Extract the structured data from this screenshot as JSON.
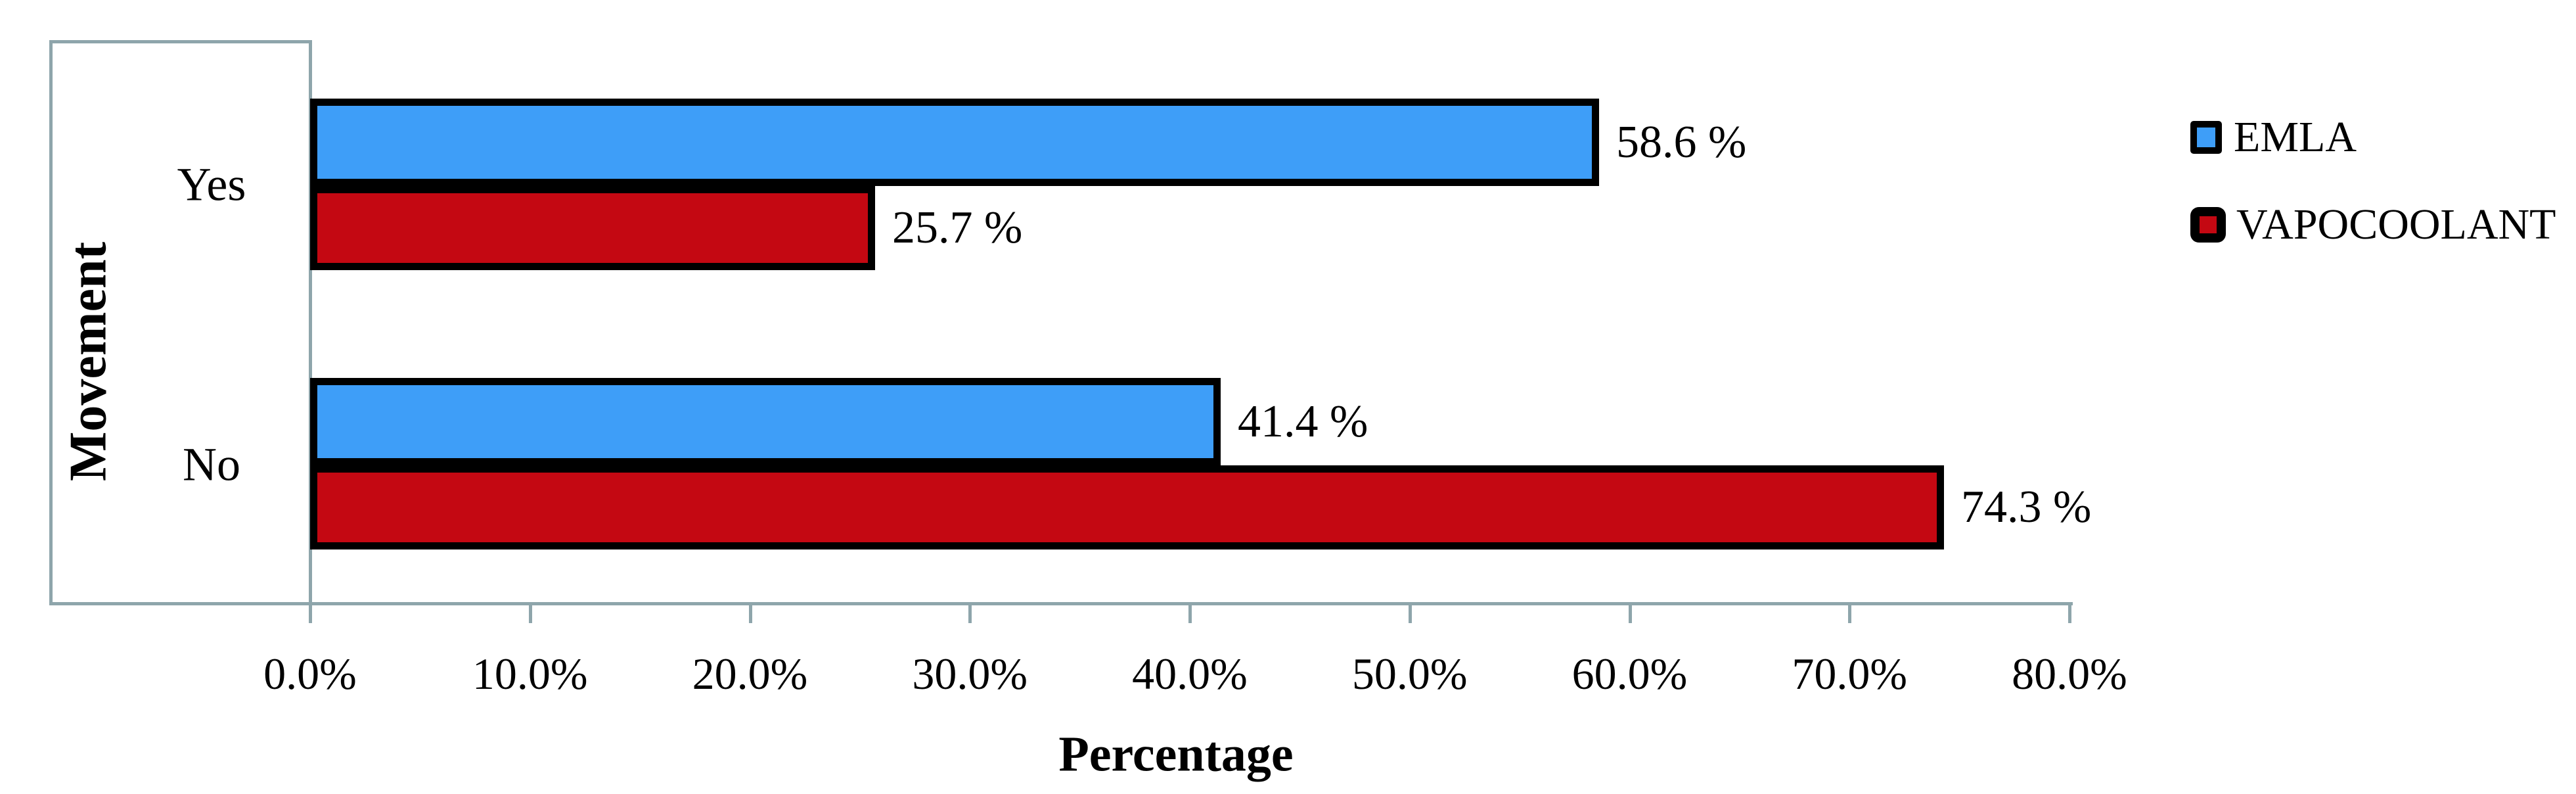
{
  "chart_data": {
    "type": "bar",
    "orientation": "horizontal",
    "title": "",
    "xlabel": "Percentage",
    "ylabel": "Movement",
    "categories": [
      "Yes",
      "No"
    ],
    "series": [
      {
        "name": "EMLA",
        "color": "#3E9EF8",
        "values": [
          58.6,
          41.4
        ],
        "labels": [
          "58.6 %",
          "41.4 %"
        ]
      },
      {
        "name": "VAPOCOOLANT",
        "color": "#C40812",
        "values": [
          25.7,
          74.3
        ],
        "labels": [
          "25.7 %",
          "74.3 %"
        ]
      }
    ],
    "x_axis": {
      "min": 0,
      "max": 80,
      "tick_values": [
        0,
        10,
        20,
        30,
        40,
        50,
        60,
        70,
        80
      ],
      "tick_labels": [
        "0.0%",
        "10.0%",
        "20.0%",
        "30.0%",
        "40.0%",
        "50.0%",
        "60.0%",
        "70.0%",
        "80.0%"
      ]
    },
    "grid": false,
    "legend_position": "right"
  },
  "colors": {
    "axis_line": "#8EA5AB",
    "bar_border": "#000000",
    "text": "#000000",
    "background": "#FFFFFF"
  }
}
